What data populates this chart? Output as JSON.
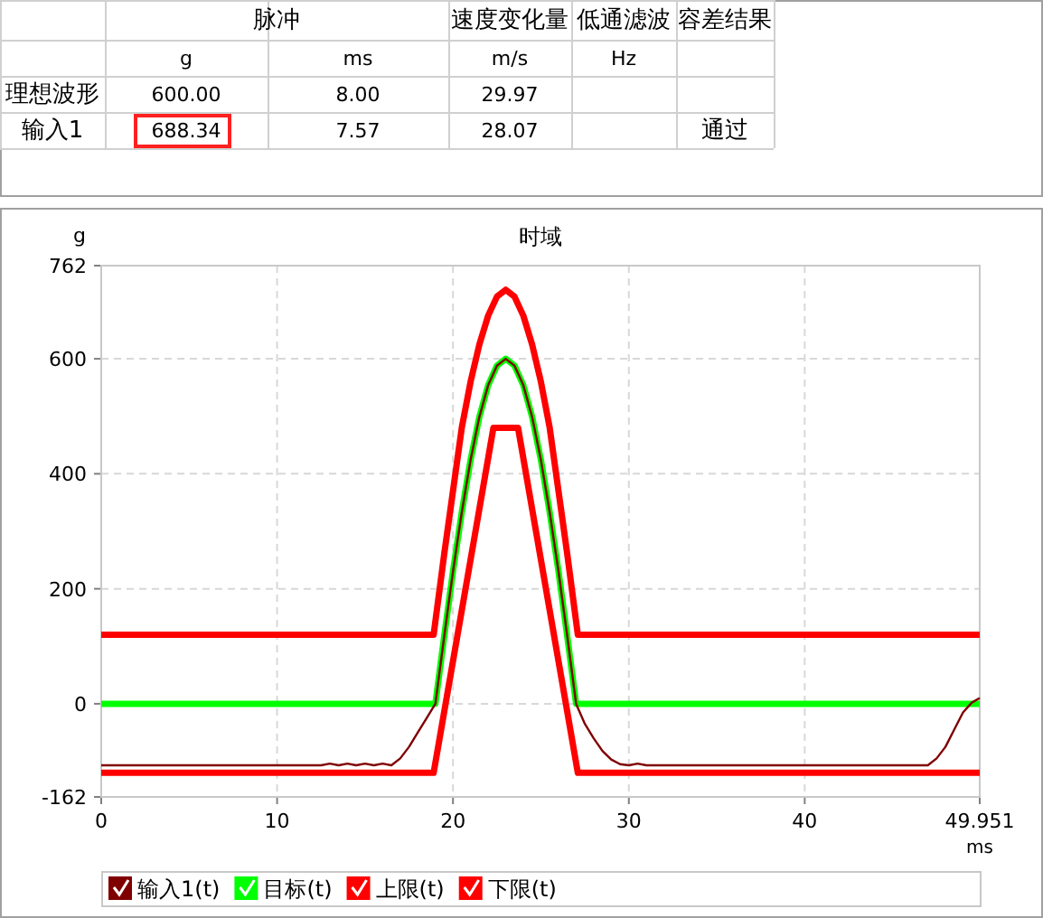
{
  "chart_data": [
    {
      "type": "other",
      "annotations": [
        "脉冲",
        "速度变化量",
        "低通滤波",
        "容差结果",
        "g",
        "ms",
        "m/s",
        "Hz",
        "理想波形",
        "600.00",
        "8.00",
        "29.97",
        "输入1",
        "688.34",
        "7.57",
        "28.07",
        "通过"
      ]
    },
    {
      "type": "line",
      "title": "时域",
      "xlabel": "ms",
      "ylabel": "g",
      "xlim": [
        0,
        49.951
      ],
      "ylim": [
        -162,
        762
      ],
      "xticks": [
        0,
        10,
        20,
        30,
        40,
        49.951
      ],
      "yticks": [
        -162,
        0,
        200,
        400,
        600,
        762
      ],
      "grid": true,
      "legend": "bottom",
      "line_style": "solid",
      "marker": "none",
      "series": [
        {
          "name": "输入1(t)",
          "color": "#800000",
          "x": [
            0,
            12.5,
            13,
            13.5,
            14,
            14.5,
            15,
            15.5,
            16,
            16.5,
            17,
            17.5,
            18,
            18.5,
            19,
            19.5,
            20,
            20.5,
            21,
            21.5,
            22,
            22.5,
            23,
            23.5,
            24,
            24.5,
            25,
            25.5,
            26,
            26.5,
            27,
            27.5,
            28,
            28.5,
            29,
            29.5,
            30,
            30.5,
            31,
            47,
            47.5,
            48,
            48.5,
            49,
            49.5,
            49.951
          ],
          "values": [
            -107,
            -107,
            -104,
            -107,
            -104,
            -107,
            -104,
            -107,
            -104,
            -107,
            -95,
            -75,
            -50,
            -25,
            0,
            117,
            230,
            333,
            424,
            499,
            554,
            588,
            600,
            588,
            554,
            499,
            424,
            333,
            230,
            117,
            0,
            -35,
            -60,
            -82,
            -97,
            -105,
            -107,
            -104,
            -107,
            -107,
            -95,
            -75,
            -45,
            -15,
            2,
            10
          ]
        },
        {
          "name": "目标(t)",
          "color": "#00ff00",
          "x": [
            0,
            19,
            19.5,
            20,
            20.5,
            21,
            21.5,
            22,
            22.5,
            23,
            23.5,
            24,
            24.5,
            25,
            25.5,
            26,
            26.5,
            27,
            49.951
          ],
          "values": [
            0,
            0,
            117,
            230,
            333,
            424,
            499,
            554,
            588,
            600,
            588,
            554,
            499,
            424,
            333,
            230,
            117,
            0,
            0
          ]
        },
        {
          "name": "上限(t)",
          "color": "#ff0000",
          "x": [
            0,
            18.9,
            19.5,
            20,
            20.5,
            21,
            21.5,
            22,
            22.5,
            23,
            23.5,
            24,
            24.5,
            25,
            25.5,
            26,
            26.5,
            27.1,
            49.951
          ],
          "values": [
            120,
            120,
            260,
            370,
            480,
            560,
            625,
            675,
            708,
            720,
            708,
            675,
            625,
            560,
            480,
            370,
            260,
            120,
            120
          ]
        },
        {
          "name": "下限(t)",
          "color": "#ff0000",
          "x": [
            0,
            18.9,
            22.3,
            23.7,
            27.1,
            49.951
          ],
          "values": [
            -120,
            -120,
            480,
            480,
            -120,
            -120
          ]
        }
      ]
    }
  ]
}
